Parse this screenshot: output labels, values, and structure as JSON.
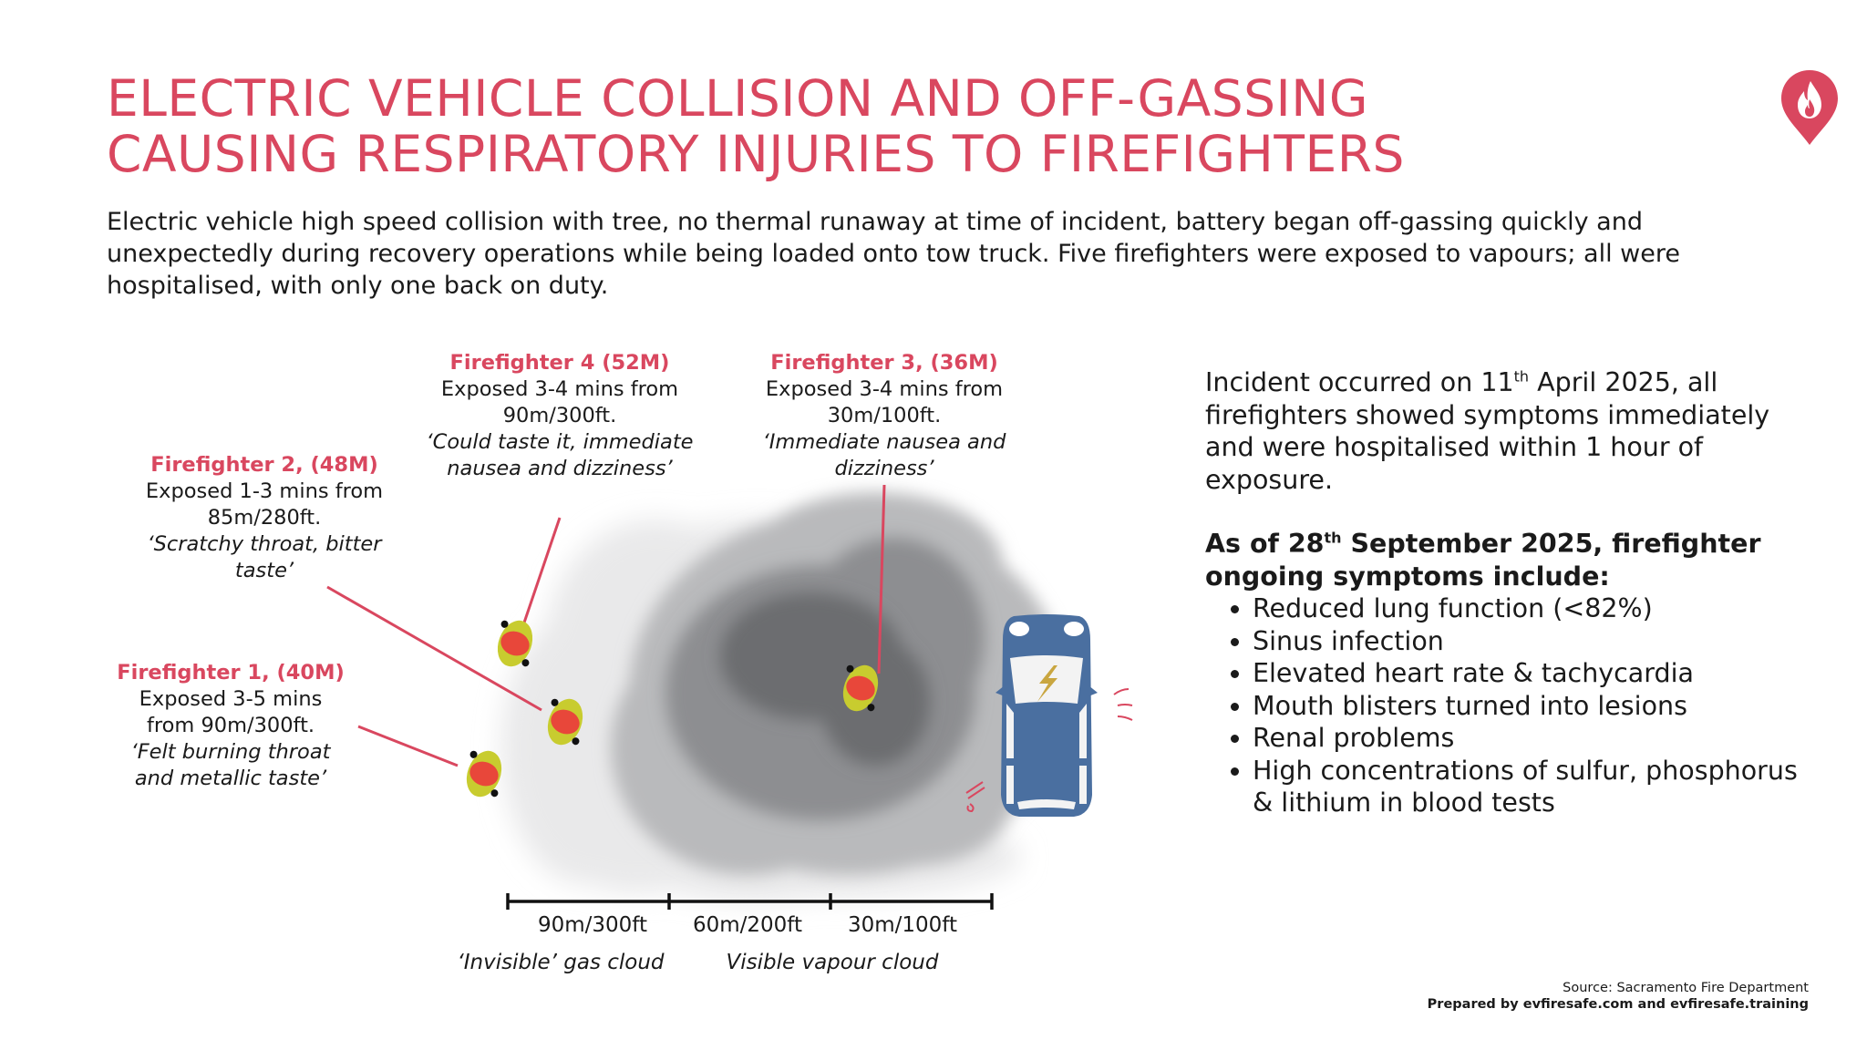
{
  "title": {
    "line1": "ELECTRIC VEHICLE COLLISION AND OFF-GASSING",
    "line2": "CAUSING RESPIRATORY INJURIES TO FIREFIGHTERS"
  },
  "intro": "Electric vehicle high speed collision with tree, no thermal runaway at time of incident, battery began off-gassing quickly and unexpectedly during recovery operations while being loaded onto tow truck. Five firefighters were exposed to vapours; all were hospitalised, with only one back on duty.",
  "logo": {
    "icon": "flame-location-pin-icon",
    "color": "#d9475f"
  },
  "firefighters": [
    {
      "heading": "Firefighter 1, (40M)",
      "line1": "Exposed 3-5 mins",
      "line2": "from 90m/300ft.",
      "quote1": "‘Felt burning throat",
      "quote2": "and metallic taste’"
    },
    {
      "heading": "Firefighter 2, (48M)",
      "line1": "Exposed 1-3 mins from",
      "line2": "85m/280ft.",
      "quote1": "‘Scratchy throat, bitter",
      "quote2": "taste’"
    },
    {
      "heading": "Firefighter 3, (36M)",
      "line1": "Exposed 3-4 mins from",
      "line2": "30m/100ft.",
      "quote1": "‘Immediate nausea and",
      "quote2": "dizziness’"
    },
    {
      "heading": "Firefighter 4 (52M)",
      "line1": "Exposed 3-4 mins from",
      "line2": "90m/300ft.",
      "quote1": "‘Could taste it, immediate",
      "quote2": "nausea and dizziness’"
    }
  ],
  "scale": {
    "labels": [
      "90m/300ft",
      "60m/200ft",
      "30m/100ft"
    ],
    "zones": [
      "‘Invisible’ gas cloud",
      "Visible vapour cloud"
    ]
  },
  "incident": {
    "pre": "Incident occurred on 11",
    "sup": "th",
    "post": " April 2025, all firefighters showed symptoms immediately and were hospitalised within 1 hour of exposure."
  },
  "ongoing": {
    "pre": "As of 28",
    "sup": "th",
    "post": " September 2025, firefighter ongoing symptoms include:",
    "items": [
      "Reduced lung function (<82%)",
      "Sinus infection",
      "Elevated heart rate & tachycardia",
      "Mouth blisters turned into lesions",
      "Renal problems",
      "High concentrations of sulfur, phosphorus & lithium in blood tests"
    ]
  },
  "source": {
    "line1": "Source: Sacramento Fire Department",
    "line2": "Prepared by evfiresafe.com and evfiresafe.training"
  },
  "colors": {
    "accent": "#d9475f",
    "car": "#4a6fa0",
    "vest": "#c8cc2f",
    "helmet": "#e8473a"
  }
}
